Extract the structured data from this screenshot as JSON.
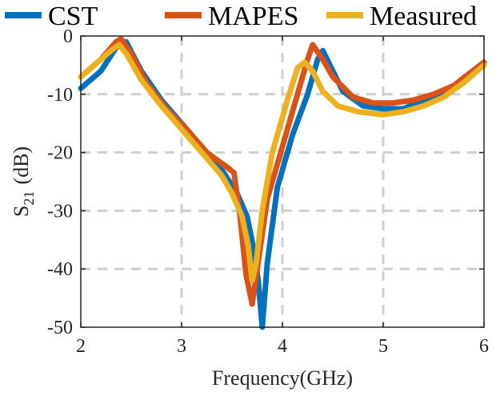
{
  "chart_data": {
    "type": "line",
    "title": "",
    "xlabel": "Frequency(GHz)",
    "ylabel": {
      "base": "S",
      "subscript": "21",
      "unit": "(dB)"
    },
    "xlim": [
      2,
      6
    ],
    "ylim": [
      -50,
      0
    ],
    "xticks": [
      2,
      3,
      4,
      5,
      6
    ],
    "yticks": [
      0,
      -10,
      -20,
      -30,
      -40,
      -50
    ],
    "xtick_labels": [
      "2",
      "3",
      "4",
      "5",
      "6"
    ],
    "ytick_labels": [
      "0",
      "-10",
      "-20",
      "-30",
      "-40",
      "-50"
    ],
    "grid": true,
    "legend_position": "top",
    "series": [
      {
        "name": "CST",
        "color": "#0072BD",
        "x": [
          2.0,
          2.2,
          2.35,
          2.45,
          2.6,
          2.8,
          3.0,
          3.2,
          3.4,
          3.55,
          3.65,
          3.72,
          3.76,
          3.8,
          3.85,
          3.95,
          4.1,
          4.25,
          4.35,
          4.4,
          4.5,
          4.6,
          4.8,
          5.0,
          5.2,
          5.4,
          5.6,
          5.8,
          6.0
        ],
        "y": [
          -9,
          -6,
          -2,
          -1,
          -6,
          -11,
          -15,
          -19,
          -23,
          -27,
          -31,
          -37,
          -42,
          -50,
          -39,
          -26,
          -17,
          -10,
          -4,
          -2.5,
          -6,
          -9.5,
          -12,
          -12.5,
          -12.5,
          -11,
          -9.5,
          -7.5,
          -5
        ]
      },
      {
        "name": "MAPES",
        "color": "#D95319",
        "x": [
          2.0,
          2.2,
          2.35,
          2.4,
          2.5,
          2.65,
          2.85,
          3.05,
          3.25,
          3.45,
          3.52,
          3.58,
          3.64,
          3.7,
          3.75,
          3.85,
          4.0,
          4.15,
          4.25,
          4.3,
          4.4,
          4.5,
          4.7,
          4.9,
          5.1,
          5.3,
          5.5,
          5.7,
          5.85,
          6.0
        ],
        "y": [
          -7,
          -4,
          -1,
          -0.5,
          -3,
          -8,
          -12.5,
          -16,
          -20,
          -22.5,
          -23.5,
          -31,
          -41,
          -46,
          -40,
          -28,
          -19,
          -10,
          -4,
          -1.5,
          -4,
          -7,
          -10.5,
          -11.5,
          -11.5,
          -11,
          -10,
          -8.5,
          -6.5,
          -4.5
        ]
      },
      {
        "name": "Measured",
        "color": "#EDB120",
        "x": [
          2.0,
          2.2,
          2.3,
          2.38,
          2.45,
          2.6,
          2.8,
          3.0,
          3.2,
          3.4,
          3.5,
          3.6,
          3.66,
          3.7,
          3.74,
          3.8,
          3.9,
          4.05,
          4.15,
          4.22,
          4.3,
          4.4,
          4.55,
          4.75,
          5.0,
          5.2,
          5.4,
          5.6,
          5.8,
          6.0
        ],
        "y": [
          -7,
          -4,
          -2.5,
          -1.5,
          -3,
          -7.5,
          -12,
          -16,
          -20,
          -24,
          -27,
          -31,
          -36,
          -42,
          -39,
          -30,
          -20,
          -11,
          -5.5,
          -4.5,
          -6,
          -9.5,
          -12,
          -13,
          -13.5,
          -13,
          -12,
          -10.5,
          -8,
          -5
        ]
      }
    ]
  }
}
